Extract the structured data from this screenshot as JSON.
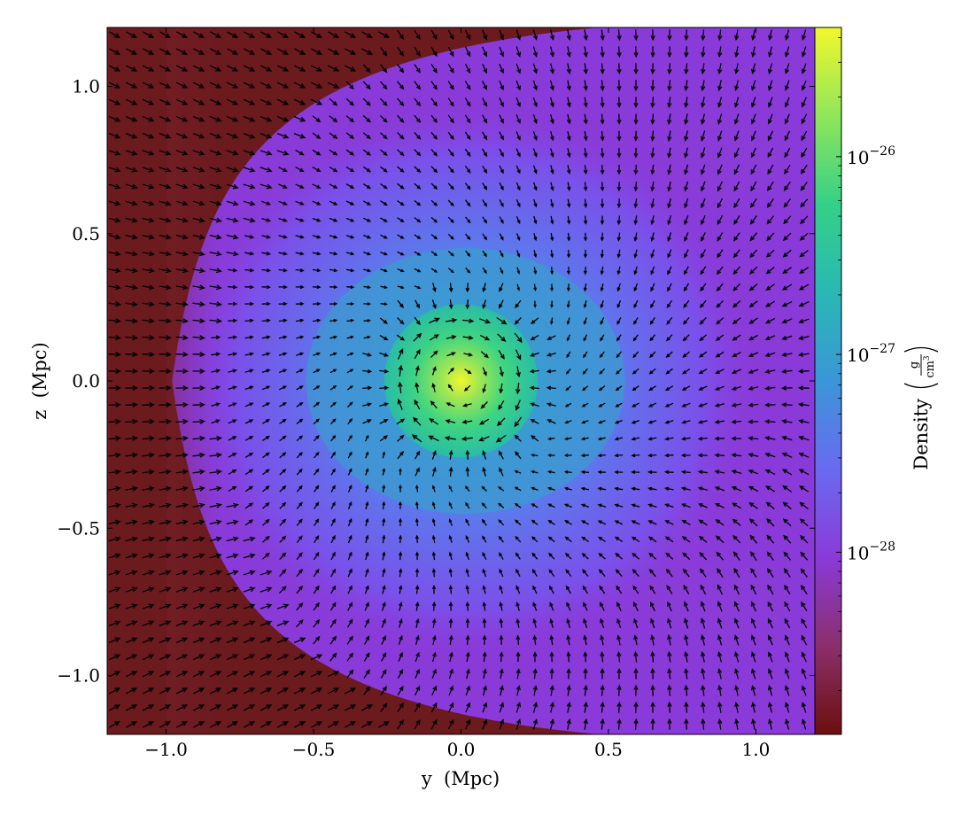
{
  "chart_data": {
    "type": "heatmap",
    "title": "",
    "xlabel": "y  (Mpc)",
    "ylabel": "z  (Mpc)",
    "xlim": [
      -1.2,
      1.2
    ],
    "ylim": [
      -1.2,
      1.2
    ],
    "x_ticks": [
      -1.0,
      -0.5,
      0.0,
      0.5,
      1.0
    ],
    "y_ticks": [
      -1.0,
      -0.5,
      0.0,
      0.5,
      1.0
    ],
    "x_tick_labels": [
      "−1.0",
      "−0.5",
      "0.0",
      "0.5",
      "1.0"
    ],
    "y_tick_labels": [
      "−1.0",
      "−0.5",
      "0.0",
      "0.5",
      "1.0"
    ],
    "grid": false,
    "colorbar": {
      "label": "Density",
      "unit_numerator": "g",
      "unit_denominator": "cm",
      "unit_denominator_exponent": "3",
      "scale": "log",
      "range": [
        1.2e-29,
        4.5e-26
      ],
      "ticks": [
        1e-26,
        1e-27,
        1e-28
      ],
      "tick_base": "10",
      "tick_exponents": [
        "−26",
        "−27",
        "−28"
      ],
      "colormap": [
        "#6b0f0f",
        "#8b2f6b",
        "#8a3ad8",
        "#6a6af0",
        "#3a96d8",
        "#2ab8b4",
        "#34d088",
        "#90e65a",
        "#f2f72c"
      ]
    },
    "overlay": "velocity quiver field",
    "features": {
      "density_peak": [
        0.0,
        0.0
      ],
      "inner_core_radius": 0.26,
      "front_boundary_y": -0.98,
      "background_color": "#6b1a1e"
    }
  }
}
